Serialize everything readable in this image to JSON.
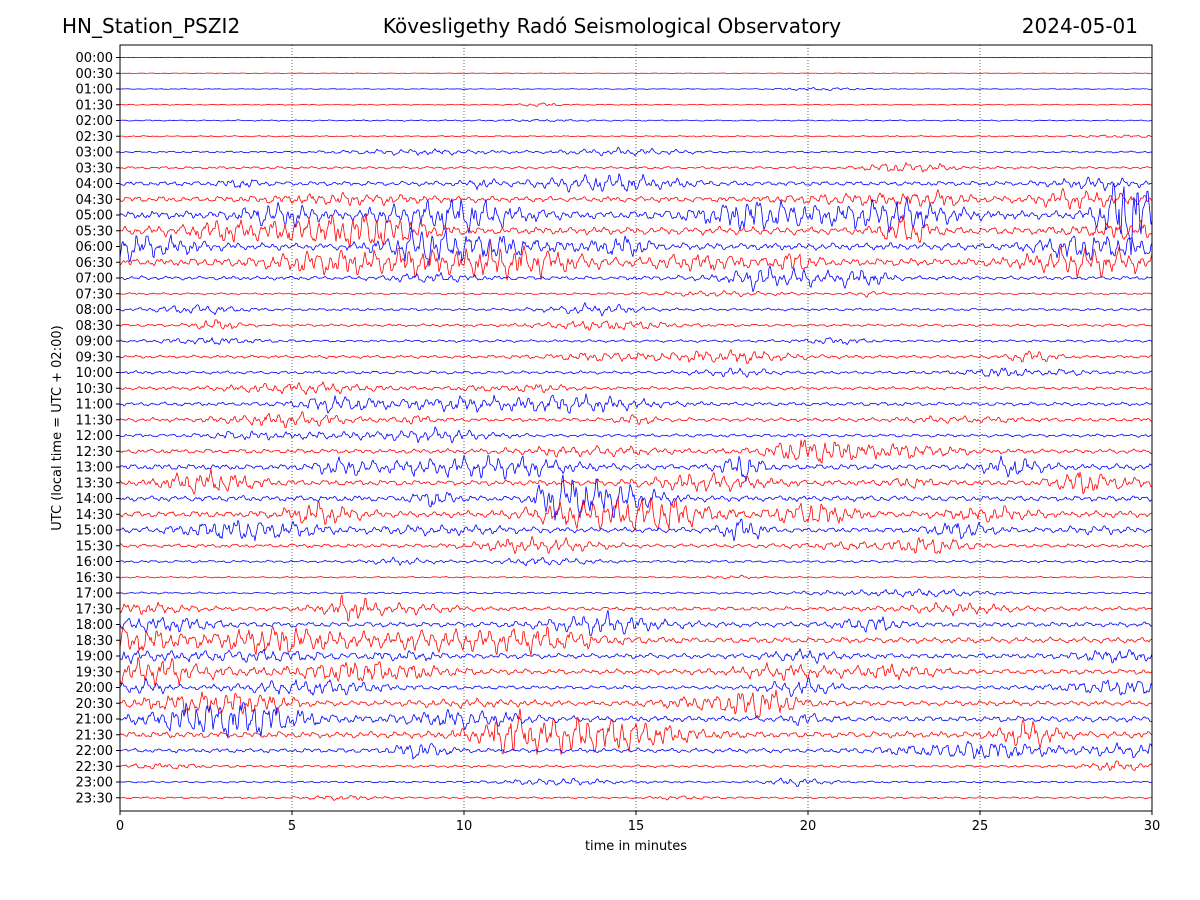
{
  "header": {
    "station": "HN_Station_PSZI2",
    "observatory": "Kövesligethy Radó Seismological Observatory",
    "date": "2024-05-01"
  },
  "chart_data": {
    "type": "line",
    "title": "Kövesligethy Radó Seismological Observatory",
    "xlabel": "time in minutes",
    "ylabel": "UTC (local time = UTC + 02:00)",
    "xlim": [
      0,
      30
    ],
    "x_ticks": [
      "0",
      "5",
      "10",
      "15",
      "20",
      "25",
      "30"
    ],
    "grid": "vertical dotted at each x tick",
    "series_colors": [
      "#0000ff",
      "#ff0000"
    ],
    "rows": [
      "00:00",
      "00:30",
      "01:00",
      "01:30",
      "02:00",
      "02:30",
      "03:00",
      "03:30",
      "04:00",
      "04:30",
      "05:00",
      "05:30",
      "06:00",
      "06:30",
      "07:00",
      "07:30",
      "08:00",
      "08:30",
      "09:00",
      "09:30",
      "10:00",
      "10:30",
      "11:00",
      "11:30",
      "12:00",
      "12:30",
      "13:00",
      "13:30",
      "14:00",
      "14:30",
      "15:00",
      "15:30",
      "16:00",
      "16:30",
      "17:00",
      "17:30",
      "18:00",
      "18:30",
      "19:00",
      "19:30",
      "20:00",
      "20:30",
      "21:00",
      "21:30",
      "22:00",
      "22:30",
      "23:00",
      "23:30"
    ],
    "row_activity": [
      0.3,
      0.4,
      0.6,
      0.7,
      1.0,
      1.0,
      1.5,
      2.0,
      3.5,
      4.5,
      6.0,
      6.0,
      5.5,
      6.0,
      3.0,
      1.5,
      2.0,
      2.0,
      2.0,
      2.5,
      2.5,
      2.5,
      3.0,
      3.0,
      2.5,
      3.5,
      4.5,
      4.5,
      4.5,
      5.0,
      4.0,
      3.0,
      2.0,
      1.2,
      1.5,
      3.0,
      4.0,
      4.5,
      4.0,
      4.0,
      3.0,
      4.0,
      4.5,
      5.0,
      3.5,
      2.0,
      1.5,
      1.5
    ]
  }
}
